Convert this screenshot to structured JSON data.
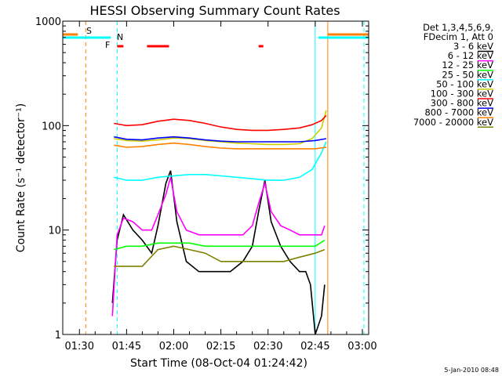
{
  "chart_data": {
    "type": "line",
    "title": "HESSI Observing Summary Count Rates",
    "xlabel": "Start Time (08-Oct-04 01:24:42)",
    "ylabel": "Count Rate (s⁻¹ detector⁻¹)",
    "y_scale": "log",
    "ylim": [
      1,
      1000
    ],
    "xlim": [
      "01:24:42",
      "03:02:00"
    ],
    "x_ticks": [
      "01:30",
      "01:45",
      "02:00",
      "02:15",
      "02:30",
      "02:45",
      "03:00"
    ],
    "y_ticks": [
      "1",
      "10",
      "100",
      "1000"
    ],
    "legend_header": [
      "Det 1,3,4,5,6,9,",
      "FDecim 1, Att 0"
    ],
    "series": [
      {
        "name": "3 - 6 keV",
        "color": "#000000",
        "x": [
          "01:40:30",
          "01:42:00",
          "01:44:00",
          "01:47:00",
          "01:50:00",
          "01:53:00",
          "01:55:00",
          "01:57:30",
          "01:59:00",
          "02:01:00",
          "02:04:00",
          "02:08:00",
          "02:13:00",
          "02:18:00",
          "02:22:00",
          "02:25:00",
          "02:27:00",
          "02:29:00",
          "02:31:00",
          "02:34:00",
          "02:37:00",
          "02:40:00",
          "02:42:00",
          "02:43:30",
          "02:45:00",
          "02:47:00",
          "02:48:00"
        ],
        "y": [
          2,
          8,
          14,
          10,
          8,
          6,
          11,
          28,
          37,
          12,
          5,
          4,
          4,
          4,
          5,
          7,
          15,
          30,
          12,
          7,
          5,
          4,
          4,
          3,
          1,
          1.5,
          3
        ]
      },
      {
        "name": "6 - 12 keV",
        "color": "#ff00ff",
        "x": [
          "01:40:30",
          "01:42:00",
          "01:44:00",
          "01:47:00",
          "01:50:00",
          "01:53:00",
          "01:55:00",
          "01:57:30",
          "01:59:00",
          "02:01:00",
          "02:04:00",
          "02:08:00",
          "02:13:00",
          "02:18:00",
          "02:22:00",
          "02:25:00",
          "02:27:00",
          "02:29:00",
          "02:31:00",
          "02:34:00",
          "02:37:00",
          "02:40:00",
          "02:43:00",
          "02:45:00",
          "02:47:00",
          "02:48:00"
        ],
        "y": [
          1.5,
          9,
          13,
          12,
          10,
          10,
          14,
          22,
          32,
          15,
          10,
          9,
          9,
          9,
          9,
          11,
          18,
          28,
          15,
          11,
          10,
          9,
          9,
          9,
          9,
          11
        ]
      },
      {
        "name": "12 - 25 keV",
        "color": "#00ff00",
        "x": [
          "01:41:00",
          "01:45:00",
          "01:50:00",
          "01:55:00",
          "02:00:00",
          "02:05:00",
          "02:10:00",
          "02:15:00",
          "02:20:00",
          "02:25:00",
          "02:30:00",
          "02:35:00",
          "02:40:00",
          "02:45:00",
          "02:48:00"
        ],
        "y": [
          6.5,
          7,
          7,
          7.5,
          7.5,
          7.5,
          7,
          7,
          7,
          7,
          7,
          7,
          7,
          7,
          8
        ]
      },
      {
        "name": "25 - 50 keV",
        "color": "#00ffff",
        "x": [
          "01:41:00",
          "01:45:00",
          "01:50:00",
          "01:55:00",
          "02:00:00",
          "02:05:00",
          "02:10:00",
          "02:15:00",
          "02:20:00",
          "02:25:00",
          "02:30:00",
          "02:35:00",
          "02:40:00",
          "02:44:00",
          "02:47:00",
          "02:48:30"
        ],
        "y": [
          32,
          30,
          30,
          32,
          33,
          34,
          34,
          33,
          32,
          31,
          30,
          30,
          32,
          38,
          55,
          70
        ]
      },
      {
        "name": "50 - 100 keV",
        "color": "#cccc00",
        "x": [
          "01:41:00",
          "01:45:00",
          "01:50:00",
          "01:55:00",
          "02:00:00",
          "02:05:00",
          "02:10:00",
          "02:15:00",
          "02:20:00",
          "02:25:00",
          "02:30:00",
          "02:35:00",
          "02:40:00",
          "02:44:00",
          "02:47:00",
          "02:48:30"
        ],
        "y": [
          75,
          72,
          71,
          73,
          76,
          75,
          72,
          70,
          68,
          67,
          66,
          66,
          67,
          75,
          95,
          140
        ]
      },
      {
        "name": "100 - 300 keV",
        "color": "#ff0000",
        "x": [
          "01:41:00",
          "01:45:00",
          "01:50:00",
          "01:55:00",
          "02:00:00",
          "02:05:00",
          "02:10:00",
          "02:15:00",
          "02:20:00",
          "02:25:00",
          "02:30:00",
          "02:35:00",
          "02:40:00",
          "02:44:00",
          "02:47:00",
          "02:48:30"
        ],
        "y": [
          105,
          100,
          102,
          110,
          115,
          112,
          105,
          97,
          92,
          90,
          90,
          92,
          95,
          102,
          112,
          125
        ]
      },
      {
        "name": "300 - 800 keV",
        "color": "#0000ff",
        "x": [
          "01:41:00",
          "01:45:00",
          "01:50:00",
          "01:55:00",
          "02:00:00",
          "02:05:00",
          "02:10:00",
          "02:15:00",
          "02:20:00",
          "02:25:00",
          "02:30:00",
          "02:35:00",
          "02:40:00",
          "02:45:00",
          "02:48:30"
        ],
        "y": [
          78,
          74,
          73,
          76,
          78,
          76,
          73,
          71,
          70,
          70,
          70,
          70,
          70,
          72,
          75
        ]
      },
      {
        "name": "800 - 7000 keV",
        "color": "#ff8000",
        "x": [
          "01:41:00",
          "01:45:00",
          "01:50:00",
          "01:55:00",
          "02:00:00",
          "02:05:00",
          "02:10:00",
          "02:15:00",
          "02:20:00",
          "02:25:00",
          "02:30:00",
          "02:35:00",
          "02:40:00",
          "02:45:00",
          "02:48:30"
        ],
        "y": [
          65,
          62,
          63,
          66,
          68,
          66,
          63,
          61,
          60,
          60,
          60,
          60,
          60,
          60,
          62
        ]
      },
      {
        "name": "7000 - 20000 keV",
        "color": "#808000",
        "x": [
          "01:41:00",
          "01:45:00",
          "01:50:00",
          "01:55:00",
          "02:00:00",
          "02:05:00",
          "02:10:00",
          "02:15:00",
          "02:20:00",
          "02:25:00",
          "02:30:00",
          "02:35:00",
          "02:40:00",
          "02:45:00",
          "02:48:00"
        ],
        "y": [
          4.5,
          4.5,
          4.5,
          6.5,
          7,
          6.5,
          6,
          5,
          5,
          5,
          5,
          5,
          5.5,
          6,
          6.5
        ]
      }
    ],
    "flags": [
      {
        "label": "S",
        "color": "#ff8000"
      },
      {
        "label": "N",
        "color": "#00ffff"
      },
      {
        "label": "F",
        "color": "#ff0000"
      }
    ],
    "flag_bars": [
      {
        "color": "#ff8000",
        "from": "01:24:42",
        "to": "01:29:30"
      },
      {
        "color": "#ff8000",
        "from": "02:49:00",
        "to": "03:02:00"
      },
      {
        "color": "#00ffff",
        "from": "01:24:42",
        "to": "01:40:00"
      },
      {
        "color": "#00ffff",
        "from": "02:46:00",
        "to": "03:02:00"
      },
      {
        "color": "#ff0000",
        "from": "01:42:00",
        "to": "01:44:00"
      },
      {
        "color": "#ff0000",
        "from": "01:51:30",
        "to": "01:58:30"
      },
      {
        "color": "#ff0000",
        "from": "02:27:00",
        "to": "02:28:30"
      }
    ],
    "vlines": [
      {
        "color": "#ff8000",
        "time": "01:32:00",
        "dashed": true
      },
      {
        "color": "#00ffff",
        "time": "01:42:00",
        "dashed": true
      },
      {
        "color": "#00ffff",
        "time": "02:45:00",
        "dashed": false
      },
      {
        "color": "#ff8000",
        "time": "02:49:00",
        "dashed": false
      },
      {
        "color": "#00ffff",
        "time": "03:00:30",
        "dashed": true
      }
    ]
  },
  "footer_date": "5-Jan-2010 08:48"
}
